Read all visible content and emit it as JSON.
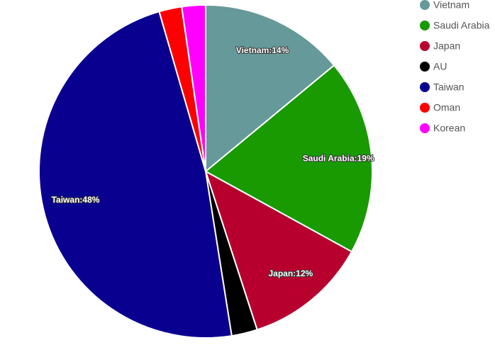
{
  "chart_data": {
    "type": "pie",
    "categories": [
      "Vietnam",
      "Saudi Arabia",
      "Japan",
      "AU",
      "Taiwan",
      "Oman",
      "Korean"
    ],
    "values": [
      14,
      19,
      12,
      2.5,
      48,
      2.2,
      2.3
    ],
    "value_labels": [
      "Vietnam:14%",
      "Saudi Arabia:19%",
      "Japan:12%",
      null,
      "Taiwan:48%",
      null,
      null
    ],
    "colors": [
      "#669999",
      "#189a00",
      "#b8002f",
      "#000000",
      "#0a008f",
      "#ff0000",
      "#ff00ff"
    ],
    "legend": "top-right"
  }
}
